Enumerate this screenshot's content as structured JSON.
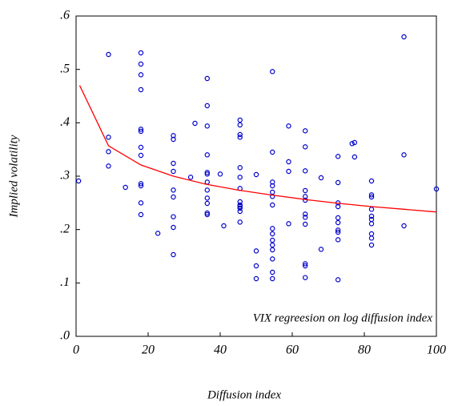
{
  "chart_data": {
    "type": "scatter",
    "annotation": "VIX regreesion on log diffusion index",
    "x_label": "Diffusion index",
    "y_label": "Implied volatility",
    "xlim": [
      0,
      100
    ],
    "ylim": [
      0,
      0.6
    ],
    "xticks": [
      0,
      20,
      40,
      60,
      80,
      100
    ],
    "yticks": [
      {
        "value": 0,
        "label": ".0"
      },
      {
        "value": 0.1,
        "label": ".1"
      },
      {
        "value": 0.2,
        "label": ".2"
      },
      {
        "value": 0.3,
        "label": ".3"
      },
      {
        "value": 0.4,
        "label": ".4"
      },
      {
        "value": 0.5,
        "label": ".5"
      },
      {
        "value": 0.6,
        "label": ".6"
      }
    ],
    "series": [
      {
        "type": "scatter",
        "color": "#0000cc",
        "x": [
          0.7,
          9,
          9,
          9,
          9,
          13.7,
          18,
          18,
          18,
          18,
          18,
          18,
          18,
          18,
          18,
          18,
          18,
          18,
          22.7,
          27,
          27,
          27,
          27,
          27,
          27,
          27,
          27,
          27,
          31.8,
          33,
          36.4,
          36.4,
          36.4,
          36.4,
          36.4,
          36.4,
          36.4,
          36.4,
          36.4,
          36.4,
          36.4,
          36.4,
          40,
          41,
          45.5,
          45.5,
          45.5,
          45.5,
          45.5,
          45.5,
          45.5,
          45.5,
          45.5,
          45.5,
          45.5,
          45.5,
          45.5,
          50,
          50,
          50,
          50,
          54.5,
          54.5,
          54.5,
          54.5,
          54.5,
          54.5,
          54.5,
          54.5,
          54.5,
          54.5,
          54.5,
          54.5,
          54.5,
          54.5,
          54.5,
          59,
          59,
          59,
          59,
          63.6,
          63.6,
          63.6,
          63.6,
          63.6,
          63.6,
          63.6,
          63.6,
          63.6,
          63.6,
          63.6,
          63.6,
          68,
          68,
          72.7,
          72.7,
          72.7,
          72.7,
          72.7,
          72.7,
          72.7,
          72.7,
          72.7,
          72.7,
          76.6,
          77.3,
          77.3,
          82,
          82,
          82,
          82,
          82,
          82,
          82,
          82,
          82,
          82,
          91,
          91,
          91,
          100
        ],
        "values": [
          0.291,
          0.528,
          0.373,
          0.346,
          0.319,
          0.279,
          0.531,
          0.51,
          0.49,
          0.462,
          0.388,
          0.384,
          0.354,
          0.339,
          0.286,
          0.282,
          0.25,
          0.228,
          0.193,
          0.376,
          0.369,
          0.324,
          0.309,
          0.274,
          0.261,
          0.224,
          0.204,
          0.153,
          0.298,
          0.399,
          0.483,
          0.432,
          0.394,
          0.34,
          0.307,
          0.304,
          0.289,
          0.274,
          0.259,
          0.249,
          0.231,
          0.228,
          0.304,
          0.207,
          0.405,
          0.396,
          0.378,
          0.373,
          0.316,
          0.298,
          0.277,
          0.252,
          0.246,
          0.24,
          0.234,
          0.214,
          0.243,
          0.303,
          0.16,
          0.132,
          0.108,
          0.496,
          0.345,
          0.289,
          0.282,
          0.27,
          0.262,
          0.246,
          0.202,
          0.192,
          0.18,
          0.171,
          0.162,
          0.145,
          0.12,
          0.108,
          0.394,
          0.327,
          0.309,
          0.211,
          0.385,
          0.355,
          0.31,
          0.273,
          0.262,
          0.255,
          0.229,
          0.223,
          0.21,
          0.136,
          0.132,
          0.11,
          0.297,
          0.163,
          0.337,
          0.288,
          0.25,
          0.243,
          0.222,
          0.213,
          0.199,
          0.195,
          0.181,
          0.106,
          0.361,
          0.363,
          0.336,
          0.291,
          0.265,
          0.261,
          0.238,
          0.225,
          0.219,
          0.211,
          0.192,
          0.184,
          0.171,
          0.561,
          0.34,
          0.207,
          0.276
        ]
      },
      {
        "type": "line",
        "color": "#ff0000",
        "x": [
          1,
          9,
          18,
          27,
          36,
          45,
          54,
          64,
          73,
          82,
          91,
          100
        ],
        "values": [
          0.47,
          0.357,
          0.321,
          0.3,
          0.285,
          0.274,
          0.265,
          0.256,
          0.249,
          0.243,
          0.238,
          0.233
        ]
      }
    ]
  }
}
